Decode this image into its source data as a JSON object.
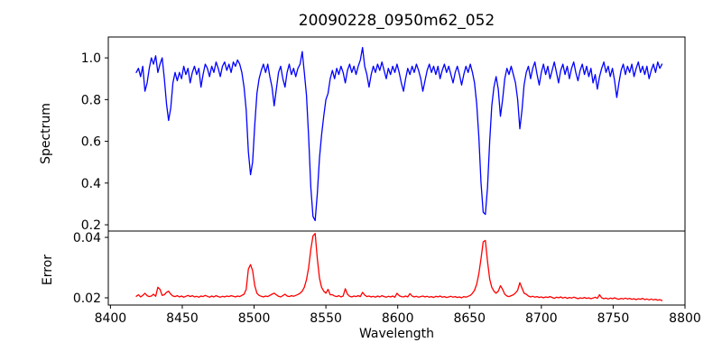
{
  "chart_data": {
    "type": "line",
    "title": "20090228_0950m62_052",
    "xlabel": "Wavelength",
    "grid": false,
    "legend": null,
    "x_start": 8418,
    "x_step": 1.5,
    "xlim": [
      8398.5,
      8800
    ],
    "xticks": [
      8400,
      8450,
      8500,
      8550,
      8600,
      8650,
      8700,
      8750,
      8800
    ],
    "xtick_labels": [
      "8400",
      "8450",
      "8500",
      "8550",
      "8600",
      "8650",
      "8700",
      "8750",
      "8800"
    ],
    "subplots": [
      {
        "name": "spectrum",
        "ylabel": "Spectrum",
        "color": "#0000ff",
        "ylim": [
          0.17,
          1.1
        ],
        "yticks": [
          0.2,
          0.4,
          0.6,
          0.8,
          1.0
        ],
        "ytick_labels": [
          "0.2",
          "0.4",
          "0.6",
          "0.8",
          "1.0"
        ],
        "values": [
          0.93,
          0.95,
          0.91,
          0.96,
          0.84,
          0.88,
          0.95,
          1.0,
          0.97,
          1.01,
          0.93,
          0.97,
          1.0,
          0.9,
          0.78,
          0.7,
          0.76,
          0.88,
          0.93,
          0.89,
          0.93,
          0.9,
          0.96,
          0.92,
          0.95,
          0.88,
          0.93,
          0.96,
          0.92,
          0.95,
          0.86,
          0.92,
          0.97,
          0.95,
          0.91,
          0.96,
          0.93,
          0.98,
          0.95,
          0.91,
          0.96,
          0.98,
          0.94,
          0.97,
          0.93,
          0.98,
          0.96,
          0.99,
          0.97,
          0.93,
          0.86,
          0.75,
          0.55,
          0.44,
          0.5,
          0.68,
          0.83,
          0.9,
          0.94,
          0.97,
          0.93,
          0.97,
          0.91,
          0.86,
          0.77,
          0.85,
          0.93,
          0.96,
          0.9,
          0.86,
          0.93,
          0.97,
          0.92,
          0.95,
          0.91,
          0.95,
          0.97,
          1.03,
          0.93,
          0.82,
          0.62,
          0.38,
          0.24,
          0.22,
          0.35,
          0.52,
          0.63,
          0.72,
          0.8,
          0.83,
          0.9,
          0.94,
          0.9,
          0.95,
          0.92,
          0.96,
          0.93,
          0.88,
          0.94,
          0.97,
          0.93,
          0.96,
          0.92,
          0.96,
          0.99,
          1.05,
          0.96,
          0.92,
          0.86,
          0.92,
          0.96,
          0.93,
          0.97,
          0.94,
          0.98,
          0.94,
          0.9,
          0.95,
          0.92,
          0.96,
          0.93,
          0.97,
          0.93,
          0.88,
          0.84,
          0.9,
          0.95,
          0.92,
          0.96,
          0.93,
          0.97,
          0.94,
          0.9,
          0.84,
          0.89,
          0.94,
          0.97,
          0.93,
          0.96,
          0.92,
          0.96,
          0.9,
          0.94,
          0.97,
          0.93,
          0.96,
          0.92,
          0.88,
          0.93,
          0.96,
          0.92,
          0.87,
          0.92,
          0.96,
          0.93,
          0.97,
          0.93,
          0.88,
          0.78,
          0.62,
          0.4,
          0.26,
          0.25,
          0.38,
          0.6,
          0.77,
          0.86,
          0.91,
          0.85,
          0.72,
          0.8,
          0.9,
          0.95,
          0.92,
          0.96,
          0.92,
          0.88,
          0.8,
          0.66,
          0.75,
          0.87,
          0.93,
          0.96,
          0.9,
          0.95,
          0.98,
          0.92,
          0.87,
          0.93,
          0.97,
          0.92,
          0.96,
          0.9,
          0.94,
          0.98,
          0.93,
          0.88,
          0.94,
          0.97,
          0.92,
          0.96,
          0.9,
          0.95,
          0.98,
          0.93,
          0.89,
          0.94,
          0.97,
          0.92,
          0.96,
          0.91,
          0.95,
          0.88,
          0.92,
          0.85,
          0.91,
          0.95,
          0.98,
          0.93,
          0.96,
          0.91,
          0.95,
          0.89,
          0.81,
          0.88,
          0.94,
          0.97,
          0.92,
          0.96,
          0.93,
          0.97,
          0.91,
          0.95,
          0.98,
          0.93,
          0.96,
          0.92,
          0.96,
          0.9,
          0.94,
          0.97,
          0.93,
          0.98,
          0.95,
          0.97
        ]
      },
      {
        "name": "error",
        "ylabel": "Error",
        "color": "#ff0000",
        "ylim": [
          0.0176,
          0.0421
        ],
        "yticks": [
          0.02,
          0.04
        ],
        "ytick_labels": [
          "0.02",
          "0.04"
        ],
        "values": [
          0.0205,
          0.021,
          0.0203,
          0.0208,
          0.0215,
          0.0207,
          0.0204,
          0.0206,
          0.0212,
          0.0205,
          0.0235,
          0.0228,
          0.0208,
          0.021,
          0.0218,
          0.0222,
          0.0212,
          0.0206,
          0.0204,
          0.0207,
          0.0203,
          0.0206,
          0.0202,
          0.0205,
          0.0208,
          0.0204,
          0.0207,
          0.0203,
          0.0205,
          0.0202,
          0.0206,
          0.0204,
          0.0208,
          0.0205,
          0.0202,
          0.0206,
          0.0203,
          0.0207,
          0.0204,
          0.0202,
          0.0205,
          0.0203,
          0.0206,
          0.0204,
          0.0207,
          0.0205,
          0.0203,
          0.0206,
          0.0204,
          0.0208,
          0.0212,
          0.0228,
          0.0295,
          0.031,
          0.029,
          0.024,
          0.0215,
          0.0208,
          0.0205,
          0.0203,
          0.0206,
          0.0204,
          0.0208,
          0.0212,
          0.0215,
          0.021,
          0.0205,
          0.0203,
          0.0207,
          0.0212,
          0.0206,
          0.0204,
          0.0207,
          0.0205,
          0.0208,
          0.0211,
          0.0215,
          0.0222,
          0.0235,
          0.026,
          0.03,
          0.036,
          0.0405,
          0.0413,
          0.033,
          0.0265,
          0.0235,
          0.0222,
          0.0215,
          0.0228,
          0.021,
          0.021,
          0.0206,
          0.0204,
          0.0207,
          0.0203,
          0.0206,
          0.023,
          0.0212,
          0.0205,
          0.0203,
          0.0206,
          0.0204,
          0.0207,
          0.0204,
          0.0218,
          0.0209,
          0.0204,
          0.0206,
          0.0203,
          0.0205,
          0.0202,
          0.0206,
          0.0203,
          0.0207,
          0.0204,
          0.0202,
          0.0205,
          0.0203,
          0.0206,
          0.0202,
          0.0215,
          0.0207,
          0.0204,
          0.0203,
          0.0206,
          0.0203,
          0.0214,
          0.0206,
          0.0203,
          0.0205,
          0.0202,
          0.0204,
          0.0206,
          0.0203,
          0.0205,
          0.0202,
          0.0204,
          0.0201,
          0.0205,
          0.0203,
          0.0206,
          0.0202,
          0.0204,
          0.0201,
          0.0203,
          0.0205,
          0.0202,
          0.0204,
          0.0201,
          0.0203,
          0.02,
          0.0204,
          0.0202,
          0.0205,
          0.0208,
          0.0215,
          0.0225,
          0.0245,
          0.028,
          0.033,
          0.0385,
          0.039,
          0.032,
          0.0262,
          0.0235,
          0.0222,
          0.0215,
          0.0222,
          0.024,
          0.0228,
          0.0212,
          0.0206,
          0.0204,
          0.0207,
          0.021,
          0.0216,
          0.0225,
          0.025,
          0.0232,
          0.0215,
          0.0212,
          0.0206,
          0.0203,
          0.0205,
          0.0202,
          0.0204,
          0.0201,
          0.0203,
          0.02,
          0.0203,
          0.0201,
          0.0204,
          0.0201,
          0.0198,
          0.0202,
          0.02,
          0.0203,
          0.0199,
          0.0202,
          0.0198,
          0.0201,
          0.0199,
          0.0202,
          0.02,
          0.0197,
          0.02,
          0.0198,
          0.0201,
          0.0198,
          0.02,
          0.0197,
          0.0199,
          0.0202,
          0.0198,
          0.021,
          0.02,
          0.0197,
          0.0199,
          0.0196,
          0.0199,
          0.0197,
          0.02,
          0.0197,
          0.0195,
          0.0198,
          0.0196,
          0.0199,
          0.0196,
          0.0198,
          0.0195,
          0.0197,
          0.0194,
          0.0197,
          0.0195,
          0.0198,
          0.0194,
          0.0196,
          0.0193,
          0.0196,
          0.0193,
          0.0195,
          0.0192,
          0.0194,
          0.0191
        ]
      }
    ],
    "colors": {
      "axis": "#000000",
      "background": "#ffffff"
    }
  }
}
